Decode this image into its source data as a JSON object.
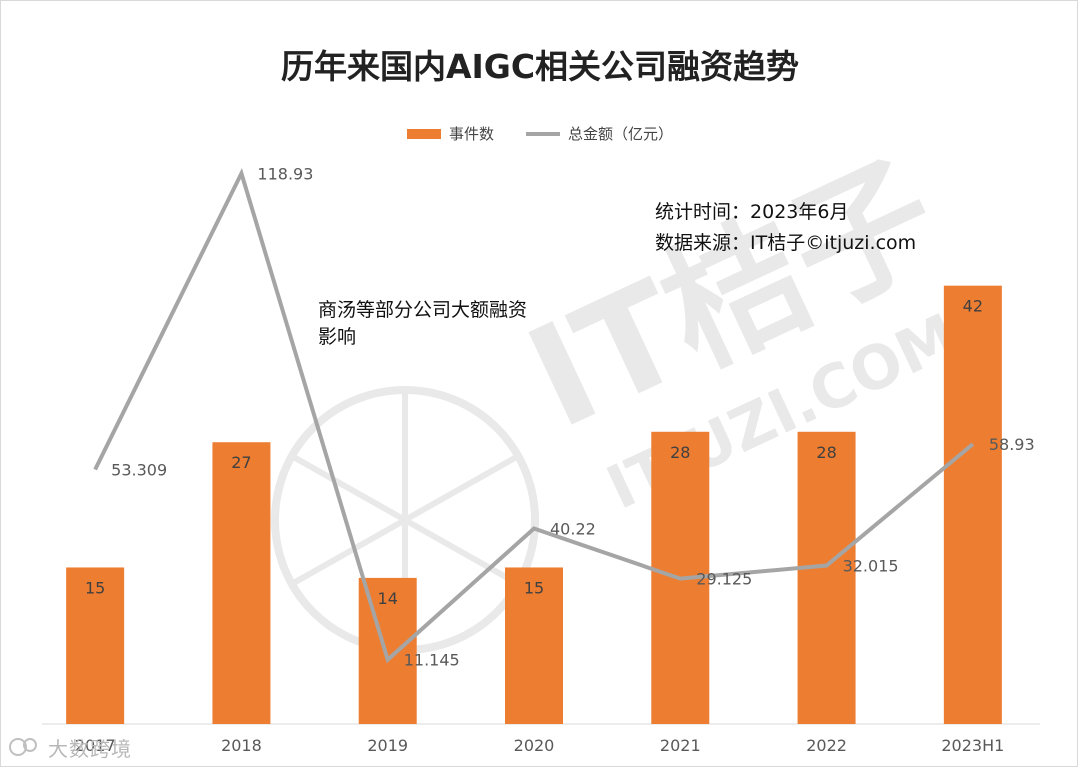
{
  "chart_data": {
    "type": "bar",
    "title": "历年来国内AIGC相关公司融资趋势",
    "categories": [
      "2017",
      "2018",
      "2019",
      "2020",
      "2021",
      "2022",
      "2023H1"
    ],
    "series": [
      {
        "name": "事件数",
        "type": "bar",
        "color": "#ED7D31",
        "values": [
          15,
          27,
          14,
          15,
          28,
          28,
          42
        ]
      },
      {
        "name": "总金额（亿元）",
        "type": "line",
        "color": "#A5A5A5",
        "values": [
          53.309,
          118.93,
          11.145,
          40.22,
          29.125,
          32.015,
          58.93
        ]
      }
    ],
    "bar_labels": [
      "15",
      "27",
      "14",
      "15",
      "28",
      "28",
      "42"
    ],
    "line_labels": [
      "53.309",
      "118.93",
      "11.145",
      "40.22",
      "29.125",
      "32.015",
      "58.93"
    ],
    "bar_axis_range": [
      0,
      55
    ],
    "line_axis_range": [
      0,
      125
    ],
    "legend_position": "top-center",
    "grid": false
  },
  "info": {
    "stat_time_label": "统计时间：",
    "stat_time_value": "2023年6月",
    "source_label": "数据来源：",
    "source_value": "IT桔子©itjuzi.com"
  },
  "annotation": "商汤等部分公司大额融资影响",
  "watermark": {
    "main": "IT桔子",
    "sub": "ITJUZI.COM",
    "corner": "大数跨境"
  }
}
